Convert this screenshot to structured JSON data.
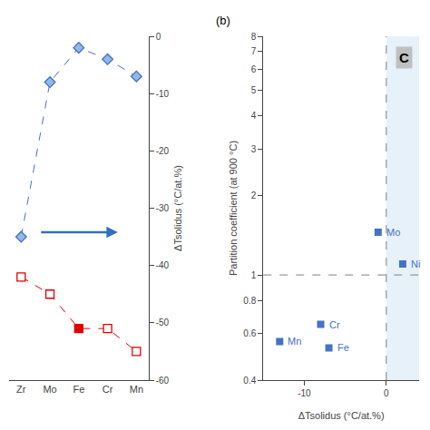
{
  "chart_data": [
    {
      "type": "line",
      "categories": [
        "Zr",
        "Mo",
        "Fe",
        "Cr",
        "Mn"
      ],
      "series": [
        {
          "color": "#4472C4",
          "colors": [
            "#90B8E8",
            "#90B8E8",
            "#90B8E8",
            "#90B8E8",
            "#90B8E8"
          ],
          "marker": "diamond",
          "line_style": "dashed",
          "values": [
            -35,
            -8,
            -2,
            -4,
            -7
          ]
        },
        {
          "color": "#E00000",
          "colors": [
            "white",
            "white",
            "#E00000",
            "white",
            "white"
          ],
          "marker": "square",
          "line_style": "dashed",
          "values": [
            -42,
            -45,
            -51,
            -51,
            -55
          ]
        }
      ],
      "ylabel": "ΔTsolidus (°C/at.%)",
      "ylim": [
        -60,
        0
      ],
      "yticks": [
        0,
        -10,
        -20,
        -30,
        -40,
        -50,
        -60
      ],
      "arrow_color": "#3070C0",
      "grid": false
    },
    {
      "type": "scatter",
      "title": "(b)",
      "series": [
        {
          "color": "#4472C4",
          "marker": "square",
          "x": [
            -13,
            -8,
            -7,
            -1,
            2
          ],
          "values": [
            0.56,
            0.65,
            0.53,
            1.45,
            1.1
          ]
        }
      ],
      "annotations": [
        {
          "text": "Mn",
          "x": -13,
          "y": 0.56
        },
        {
          "text": "Cr",
          "x": -8,
          "y": 0.65
        },
        {
          "text": "Fe",
          "x": -7,
          "y": 0.53
        },
        {
          "text": "Mo",
          "x": -1,
          "y": 1.45
        },
        {
          "text": "Ni",
          "x": 2,
          "y": 1.1
        },
        {
          "text": "C"
        }
      ],
      "hlines": [
        1
      ],
      "vlines": [
        0
      ],
      "shade_x": [
        0,
        4
      ],
      "shade_color": "#D6E8F5",
      "xlabel": "ΔTsolidus (°C/at.%)",
      "ylabel": "Partition coefficient (at 900 °C)",
      "xlim": [
        -15,
        4
      ],
      "xticks": [
        -10,
        0
      ],
      "ylim": [
        0.4,
        8
      ],
      "yticks": [
        0.4,
        0.6,
        0.8,
        1,
        2,
        3,
        4,
        5,
        6,
        7,
        8
      ],
      "log": "y",
      "grid": false
    }
  ]
}
